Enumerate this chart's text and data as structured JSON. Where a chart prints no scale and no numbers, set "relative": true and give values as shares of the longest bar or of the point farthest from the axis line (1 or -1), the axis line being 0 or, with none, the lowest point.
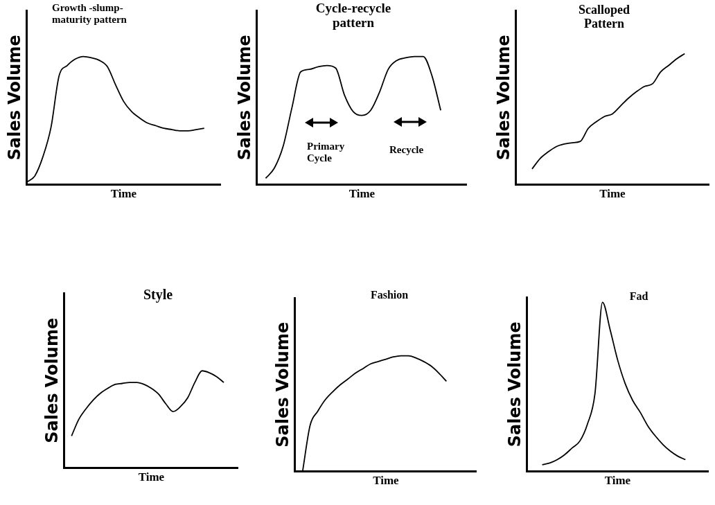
{
  "chart_data": [
    {
      "type": "line",
      "title": "Growth -slump-maturity pattern",
      "xlabel": "Time",
      "ylabel": "Sales Volume",
      "relative": true,
      "color": "#000000",
      "categories": [
        null,
        null,
        null,
        null,
        null,
        null,
        null,
        null,
        null,
        null,
        null,
        null,
        null,
        null,
        null,
        null,
        null,
        null,
        null,
        null,
        null,
        null,
        null,
        null,
        null
      ],
      "values": [
        0.02,
        0.07,
        0.22,
        0.45,
        0.85,
        0.93,
        0.98,
        1,
        0.99,
        0.97,
        0.92,
        0.78,
        0.65,
        0.57,
        0.52,
        0.48,
        0.46,
        0.44,
        0.43,
        0.42,
        0.42,
        0.43,
        0.44,
        null,
        null
      ]
    },
    {
      "type": "line",
      "title": "Cycle-recycle pattern",
      "xlabel": "Time",
      "ylabel": "Sales Volume",
      "relative": true,
      "color": "#000000",
      "annotations": [
        "Primary Cycle",
        "Recycle"
      ],
      "categories": [
        null,
        null,
        null,
        null,
        null,
        null,
        null,
        null,
        null,
        null,
        null,
        null,
        null,
        null,
        null,
        null,
        null,
        null,
        null,
        null,
        null,
        null,
        null,
        null,
        null
      ],
      "values": [
        null,
        0.05,
        0.13,
        0.3,
        0.6,
        0.88,
        0.9,
        0.92,
        0.93,
        0.91,
        0.7,
        0.57,
        0.54,
        0.58,
        0.72,
        0.9,
        0.97,
        0.99,
        1,
        1,
        0.85,
        0.58,
        null,
        null,
        null
      ]
    },
    {
      "type": "line",
      "title": "Scalloped Pattern",
      "xlabel": "Time",
      "ylabel": "Sales Volume",
      "relative": true,
      "color": "#000000",
      "categories": [
        null,
        null,
        null,
        null,
        null,
        null,
        null,
        null,
        null,
        null,
        null,
        null,
        null,
        null,
        null,
        null,
        null,
        null,
        null,
        null,
        null,
        null,
        null,
        null,
        null
      ],
      "values": [
        null,
        null,
        0.12,
        0.2,
        0.25,
        0.29,
        0.31,
        0.32,
        0.33,
        0.43,
        0.48,
        0.52,
        0.54,
        0.6,
        0.66,
        0.71,
        0.75,
        0.77,
        0.86,
        0.91,
        0.96,
        1,
        null,
        null,
        null
      ]
    },
    {
      "type": "line",
      "title": "Style",
      "xlabel": "Time",
      "ylabel": "Sales Volume",
      "relative": true,
      "color": "#000000",
      "categories": [
        null,
        null,
        null,
        null,
        null,
        null,
        null,
        null,
        null,
        null,
        null,
        null,
        null,
        null,
        null,
        null,
        null,
        null,
        null,
        null,
        null,
        null,
        null,
        null,
        null
      ],
      "values": [
        null,
        0.33,
        0.5,
        0.61,
        0.7,
        0.77,
        0.82,
        0.86,
        0.87,
        0.88,
        0.88,
        0.86,
        0.82,
        0.76,
        0.66,
        0.58,
        0.63,
        0.72,
        0.88,
        1,
        0.98,
        0.94,
        0.88,
        null,
        null
      ]
    },
    {
      "type": "line",
      "title": "Fashion",
      "xlabel": "Time",
      "ylabel": "Sales Volume",
      "relative": true,
      "color": "#000000",
      "categories": [
        null,
        null,
        null,
        null,
        null,
        null,
        null,
        null,
        null,
        null,
        null,
        null,
        null,
        null,
        null,
        null,
        null,
        null,
        null,
        null,
        null,
        null,
        null,
        null,
        null
      ],
      "values": [
        null,
        0,
        0.4,
        0.52,
        0.62,
        0.69,
        0.75,
        0.8,
        0.85,
        0.89,
        0.93,
        0.95,
        0.97,
        0.99,
        1,
        1,
        0.98,
        0.95,
        0.91,
        0.85,
        0.78,
        null,
        null,
        null,
        null
      ]
    },
    {
      "type": "line",
      "title": "Fad",
      "xlabel": "Time",
      "ylabel": "Sales Volume",
      "relative": true,
      "color": "#000000",
      "categories": [
        null,
        null,
        null,
        null,
        null,
        null,
        null,
        null,
        null,
        null,
        null,
        null,
        null,
        null,
        null,
        null,
        null,
        null,
        null,
        null,
        null,
        null,
        null,
        null,
        null
      ],
      "values": [
        null,
        null,
        0.04,
        0.05,
        0.07,
        0.1,
        0.14,
        0.18,
        0.28,
        0.46,
        1,
        0.84,
        0.66,
        0.52,
        0.42,
        0.35,
        0.27,
        0.21,
        0.16,
        0.12,
        0.09,
        0.07,
        null,
        null,
        null
      ]
    }
  ]
}
